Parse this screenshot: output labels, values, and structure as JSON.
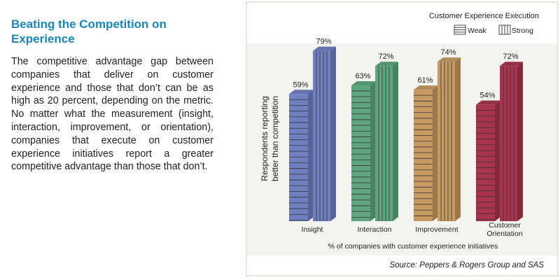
{
  "article": {
    "title": "Beating the Competition on Experience",
    "body": "The competitive advantage gap between companies that deliver on customer experience and those that don’t can be as high as 20 percent, depending on the metric. No matter what the measurement (insight, interaction, improvement, or orientation), companies that execute on customer experience initiatives report a greater competitive advantage than those that don’t."
  },
  "chart_data": {
    "type": "bar",
    "categories": [
      "Insight",
      "Interaction",
      "Improvement",
      "Customer Orientation"
    ],
    "series": [
      {
        "name": "Weak",
        "pattern": "horizontal-stripes",
        "values": [
          59,
          63,
          61,
          54
        ]
      },
      {
        "name": "Strong",
        "pattern": "vertical-stripes",
        "values": [
          79,
          72,
          74,
          72
        ]
      }
    ],
    "data_labels": [
      [
        "59%",
        "79%"
      ],
      [
        "63%",
        "72%"
      ],
      [
        "61%",
        "74%"
      ],
      [
        "54%",
        "72%"
      ]
    ],
    "colors": [
      "#6f7fc2",
      "#5fa57f",
      "#c79a62",
      "#a8344f"
    ],
    "legend_title": "Customer Experience Execution",
    "legend_placement": "top-right",
    "ylabel": "Respondents reporting better than competition",
    "xlabel": "% of companies with customer experience initiatives",
    "source": "Source: Peppers & Rogers Group and SAS",
    "style": "3d-bars"
  }
}
